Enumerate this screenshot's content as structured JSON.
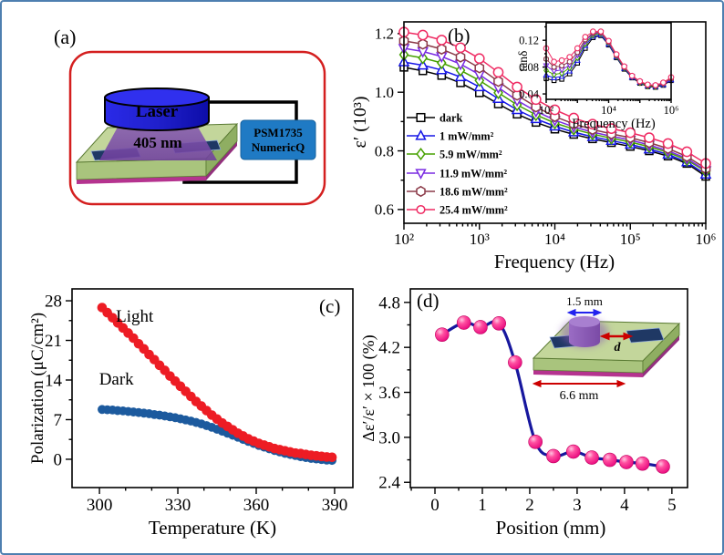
{
  "figure": {
    "colors": {
      "outer_border": "#4e7fb0",
      "panel_a_border": "#d41f1f",
      "laser_blue": "#1b1bd8",
      "beam_purple": "#7a4fa8",
      "substrate_green": "#c3d69b",
      "electrode_navy": "#1f3864",
      "instrument_box_blue": "#1f7ac4",
      "light_curve_red": "#ed1c24",
      "dark_curve_blue": "#1c5a9e",
      "sphere_pink": "#ff2d8e",
      "spline_navy": "#17179e"
    },
    "panels": {
      "a": {
        "label": "(a)",
        "laser_label": "Laser",
        "wavelength": "405 nm",
        "instrument_line1": "PSM1735",
        "instrument_line2": "NumericQ"
      },
      "c": {
        "light_label": "Light",
        "dark_label": "Dark"
      },
      "d": {
        "inset": {
          "spot_width": "1.5 mm",
          "gap_label": "d",
          "sample_width": "6.6 mm"
        }
      }
    }
  },
  "chart_data": [
    {
      "id": "b-main",
      "panel_label": "(b)",
      "type": "line",
      "x_scale": "log",
      "xlabel": "Frequency (Hz)",
      "ylabel": "ε′ (10³)",
      "xlim": [
        100,
        1000000
      ],
      "ylim": [
        0.6,
        1.2
      ],
      "xticks": {
        "values": [
          100,
          1000,
          10000,
          100000,
          1000000
        ],
        "labels": [
          "10²",
          "10³",
          "10⁴",
          "10⁵",
          "10⁶"
        ]
      },
      "yticks": {
        "values": [
          0.6,
          0.8,
          1.0,
          1.2
        ],
        "labels": [
          "0.6",
          "0.8",
          "1.0",
          "1.2"
        ]
      },
      "legend_position": "inside-left",
      "x": [
        100,
        178,
        316,
        562,
        1000,
        1780,
        3160,
        5620,
        10000,
        17800,
        31600,
        56200,
        100000,
        178000,
        316000,
        562000,
        1000000
      ],
      "series": [
        {
          "name": "dark",
          "marker": "square",
          "color": "#000000",
          "values": [
            1.085,
            1.073,
            1.057,
            1.032,
            0.998,
            0.96,
            0.925,
            0.897,
            0.874,
            0.856,
            0.841,
            0.828,
            0.815,
            0.8,
            0.782,
            0.757,
            0.713
          ]
        },
        {
          "name": "1 mW/mm²",
          "marker": "triangle-up",
          "color": "#1616e6",
          "values": [
            1.103,
            1.092,
            1.076,
            1.052,
            1.018,
            0.978,
            0.94,
            0.909,
            0.884,
            0.864,
            0.848,
            0.835,
            0.822,
            0.806,
            0.788,
            0.762,
            0.72
          ]
        },
        {
          "name": "5.9 mW/mm²",
          "marker": "diamond",
          "color": "#46a000",
          "values": [
            1.128,
            1.117,
            1.1,
            1.075,
            1.04,
            0.998,
            0.957,
            0.923,
            0.895,
            0.874,
            0.857,
            0.843,
            0.83,
            0.814,
            0.795,
            0.769,
            0.73
          ]
        },
        {
          "name": "11.9 mW/mm²",
          "marker": "triangle-down",
          "color": "#7a2be2",
          "values": [
            1.15,
            1.139,
            1.122,
            1.096,
            1.06,
            1.016,
            0.972,
            0.935,
            0.905,
            0.882,
            0.864,
            0.85,
            0.837,
            0.82,
            0.8,
            0.774,
            0.733
          ]
        },
        {
          "name": "18.6 mW/mm²",
          "marker": "hexagon",
          "color": "#8b3a48",
          "values": [
            1.175,
            1.164,
            1.147,
            1.12,
            1.083,
            1.037,
            0.99,
            0.95,
            0.917,
            0.892,
            0.873,
            0.858,
            0.845,
            0.828,
            0.808,
            0.781,
            0.74
          ]
        },
        {
          "name": "25.4 mW/mm²",
          "marker": "circle",
          "color": "#ef2b63",
          "values": [
            1.205,
            1.195,
            1.178,
            1.152,
            1.115,
            1.068,
            1.018,
            0.975,
            0.94,
            0.912,
            0.891,
            0.876,
            0.862,
            0.845,
            0.825,
            0.797,
            0.757
          ]
        }
      ]
    },
    {
      "id": "b-inset",
      "type": "line",
      "x_scale": "log",
      "xlabel": "Frequency (Hz)",
      "ylabel": "tanδ",
      "xlim": [
        100,
        1000000
      ],
      "ylim": [
        0.04,
        0.12
      ],
      "xticks": {
        "values": [
          100,
          1000,
          10000,
          100000,
          1000000
        ],
        "labels": [
          "10²",
          "",
          "10⁴",
          "",
          "10⁶"
        ]
      },
      "yticks": {
        "values": [
          0.04,
          0.08,
          0.12
        ],
        "labels": [
          "0.04",
          "0.08",
          "0.12"
        ]
      },
      "x": [
        100,
        178,
        316,
        562,
        1000,
        1780,
        3160,
        5620,
        10000,
        17800,
        31600,
        56200,
        100000,
        178000,
        316000,
        562000,
        1000000
      ],
      "series": [
        {
          "name": "dark",
          "marker": "square",
          "color": "#000000",
          "values": [
            0.063,
            0.06,
            0.062,
            0.07,
            0.086,
            0.108,
            0.124,
            0.127,
            0.113,
            0.094,
            0.077,
            0.064,
            0.056,
            0.051,
            0.05,
            0.053,
            0.06
          ]
        },
        {
          "name": "1 mW/mm²",
          "marker": "triangle-up",
          "color": "#1616e6",
          "values": [
            0.068,
            0.064,
            0.066,
            0.074,
            0.09,
            0.112,
            0.126,
            0.128,
            0.114,
            0.095,
            0.078,
            0.065,
            0.057,
            0.052,
            0.051,
            0.054,
            0.061
          ]
        },
        {
          "name": "5.9 mW/mm²",
          "marker": "diamond",
          "color": "#46a000",
          "values": [
            0.075,
            0.069,
            0.071,
            0.079,
            0.094,
            0.115,
            0.128,
            0.13,
            0.116,
            0.096,
            0.079,
            0.066,
            0.057,
            0.052,
            0.051,
            0.055,
            0.062
          ]
        },
        {
          "name": "11.9 mW/mm²",
          "marker": "triangle-down",
          "color": "#7a2be2",
          "values": [
            0.082,
            0.074,
            0.076,
            0.083,
            0.098,
            0.118,
            0.13,
            0.131,
            0.117,
            0.097,
            0.08,
            0.066,
            0.058,
            0.053,
            0.052,
            0.055,
            0.062
          ]
        },
        {
          "name": "18.6 mW/mm²",
          "marker": "hexagon",
          "color": "#8b3a48",
          "values": [
            0.092,
            0.08,
            0.082,
            0.088,
            0.102,
            0.121,
            0.131,
            0.132,
            0.118,
            0.098,
            0.08,
            0.067,
            0.058,
            0.053,
            0.052,
            0.056,
            0.063
          ]
        },
        {
          "name": "25.4 mW/mm²",
          "marker": "circle",
          "color": "#ef2b63",
          "values": [
            0.108,
            0.088,
            0.09,
            0.095,
            0.108,
            0.125,
            0.133,
            0.133,
            0.119,
            0.099,
            0.081,
            0.067,
            0.059,
            0.054,
            0.053,
            0.057,
            0.065
          ]
        }
      ]
    },
    {
      "id": "c-polarization",
      "panel_label": "(c)",
      "type": "scatter",
      "x_scale": "linear",
      "xlabel": "Temperature (K)",
      "ylabel": "Polarization (μC/cm²)",
      "xlim": [
        300,
        390
      ],
      "ylim": [
        0,
        28
      ],
      "xticks": {
        "values": [
          300,
          330,
          360,
          390
        ],
        "labels": [
          "300",
          "330",
          "360",
          "390"
        ]
      },
      "yticks": {
        "values": [
          0,
          7,
          14,
          21,
          28
        ],
        "labels": [
          "0",
          "7",
          "14",
          "21",
          "28"
        ]
      },
      "x": [
        301,
        303,
        305,
        307,
        309,
        311,
        313,
        315,
        317,
        319,
        321,
        323,
        325,
        327,
        329,
        331,
        333,
        335,
        337,
        339,
        341,
        343,
        345,
        347,
        349,
        351,
        353,
        355,
        357,
        359,
        361,
        363,
        365,
        367,
        369,
        371,
        373,
        375,
        377,
        379,
        381,
        383,
        385,
        387,
        389
      ],
      "series": [
        {
          "name": "Dark",
          "marker": "circle",
          "color": "#1c5a9e",
          "values": [
            8.8,
            8.75,
            8.7,
            8.6,
            8.55,
            8.45,
            8.35,
            8.25,
            8.15,
            8.05,
            7.9,
            7.8,
            7.65,
            7.5,
            7.35,
            7.15,
            6.95,
            6.75,
            6.5,
            6.25,
            5.95,
            5.65,
            5.3,
            4.95,
            4.6,
            4.25,
            3.9,
            3.5,
            3.15,
            2.8,
            2.45,
            2.15,
            1.85,
            1.55,
            1.3,
            1.05,
            0.85,
            0.65,
            0.45,
            0.3,
            0.15,
            0.05,
            -0.05,
            -0.15,
            -0.2
          ]
        },
        {
          "name": "Light",
          "marker": "circle",
          "color": "#ed1c24",
          "values": [
            26.8,
            25.9,
            25.0,
            24.1,
            23.2,
            22.3,
            21.4,
            20.4,
            19.5,
            18.5,
            17.6,
            16.6,
            15.7,
            14.7,
            13.8,
            12.9,
            12.0,
            11.1,
            10.2,
            9.4,
            8.6,
            7.8,
            7.1,
            6.4,
            5.8,
            5.2,
            4.6,
            4.1,
            3.6,
            3.2,
            2.8,
            2.5,
            2.2,
            1.9,
            1.7,
            1.5,
            1.3,
            1.1,
            1.0,
            0.85,
            0.7,
            0.6,
            0.5,
            0.4,
            0.35
          ]
        }
      ],
      "annotations": [
        {
          "text": "Light",
          "x": 313.5,
          "y": 24.3
        },
        {
          "text": "Dark",
          "x": 306.5,
          "y": 13.2
        }
      ]
    },
    {
      "id": "d-position-scan",
      "panel_label": "(d)",
      "type": "line",
      "x_scale": "linear",
      "xlabel": "Position (mm)",
      "ylabel": "Δε′/ε′ × 100 (%)",
      "xlim": [
        0,
        5
      ],
      "ylim": [
        2.4,
        4.8
      ],
      "xticks": {
        "values": [
          0,
          1,
          2,
          3,
          4,
          5
        ],
        "labels": [
          "0",
          "1",
          "2",
          "3",
          "4",
          "5"
        ]
      },
      "yticks": {
        "values": [
          2.4,
          3.0,
          3.6,
          4.2,
          4.8
        ],
        "labels": [
          "2.4",
          "3.0",
          "3.6",
          "4.2",
          "4.8"
        ]
      },
      "x": [
        0.15,
        0.61,
        0.96,
        1.35,
        1.69,
        2.12,
        2.5,
        2.92,
        3.31,
        3.69,
        4.04,
        4.38,
        4.81
      ],
      "series": [
        {
          "name": "Δε′/ε′ × 100",
          "marker": "sphere",
          "color": "#ff2d8e",
          "values": [
            4.37,
            4.53,
            4.47,
            4.52,
            4.0,
            2.94,
            2.75,
            2.81,
            2.73,
            2.7,
            2.67,
            2.65,
            2.61
          ]
        }
      ]
    }
  ]
}
